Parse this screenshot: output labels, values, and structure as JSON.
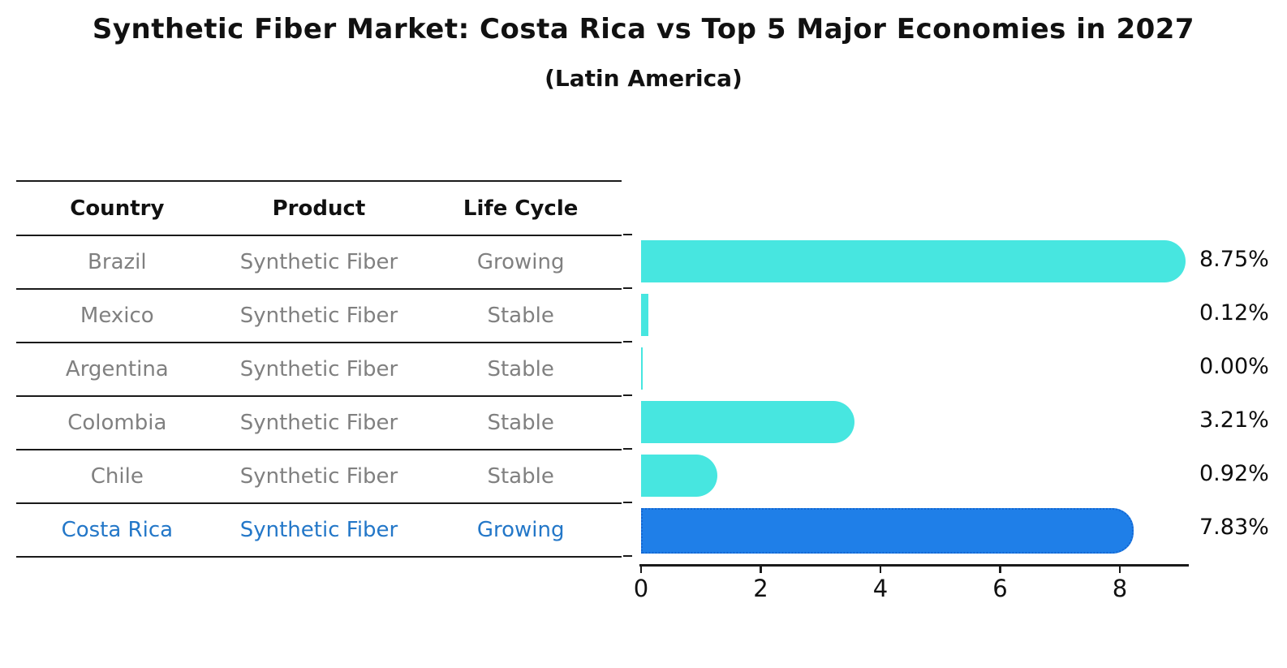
{
  "title": "Synthetic Fiber Market: Costa Rica vs Top 5 Major Economies in 2027",
  "subtitle": "(Latin America)",
  "table": {
    "headers": [
      "Country",
      "Product",
      "Life Cycle"
    ],
    "rows": [
      {
        "country": "Brazil",
        "product": "Synthetic Fiber",
        "life_cycle": "Growing"
      },
      {
        "country": "Mexico",
        "product": "Synthetic Fiber",
        "life_cycle": "Stable"
      },
      {
        "country": "Argentina",
        "product": "Synthetic Fiber",
        "life_cycle": "Stable"
      },
      {
        "country": "Colombia",
        "product": "Synthetic Fiber",
        "life_cycle": "Stable"
      },
      {
        "country": "Chile",
        "product": "Synthetic Fiber",
        "life_cycle": "Stable"
      },
      {
        "country": "Costa Rica",
        "product": "Synthetic Fiber",
        "life_cycle": "Growing"
      }
    ]
  },
  "chart_data": {
    "type": "bar",
    "orientation": "horizontal",
    "title": "Synthetic Fiber Market: Costa Rica vs Top 5 Major Economies in 2027 (Latin America)",
    "categories": [
      "Brazil",
      "Mexico",
      "Argentina",
      "Colombia",
      "Chile",
      "Costa Rica"
    ],
    "values": [
      8.75,
      0.12,
      0.0,
      3.21,
      0.92,
      7.83
    ],
    "value_labels": [
      "8.75%",
      "0.12%",
      "0.00%",
      "3.21%",
      "0.92%",
      "7.83%"
    ],
    "x_ticks": [
      0,
      2,
      4,
      6,
      8
    ],
    "xlim": [
      0,
      9.19
    ],
    "grid": false,
    "highlight_index": 5,
    "bar_color": "#47e6e0",
    "highlight_color": "#1f7fe8",
    "highlight_border_color": "#1467d2",
    "highlight_text_color": "#2377c8",
    "muted_text_color": "#808080"
  }
}
